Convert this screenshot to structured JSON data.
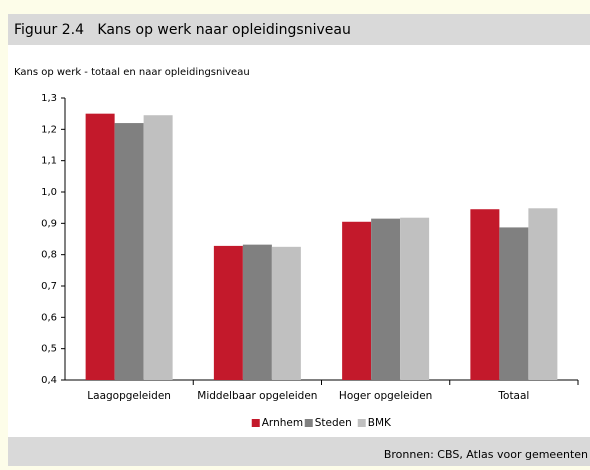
{
  "header": {
    "title": "Figuur 2.4   Kans op werk naar opleidingsniveau"
  },
  "chart_data": {
    "type": "bar",
    "subtitle": "Kans op werk - totaal en naar opleidingsniveau",
    "categories": [
      "Laagopgeleiden",
      "Middelbaar opgeleiden",
      "Hoger opgeleiden",
      "Totaal"
    ],
    "series": [
      {
        "name": "Arnhem",
        "color": "#c3192b",
        "values": [
          1.25,
          0.828,
          0.905,
          0.945
        ]
      },
      {
        "name": "Steden",
        "color": "#808080",
        "values": [
          1.22,
          0.832,
          0.915,
          0.887
        ]
      },
      {
        "name": "BMK",
        "color": "#c0c0c0",
        "values": [
          1.245,
          0.825,
          0.918,
          0.948
        ]
      }
    ],
    "ylim": [
      0.4,
      1.3
    ],
    "yticks": [
      {
        "value": 0.4,
        "label": "0,4"
      },
      {
        "value": 0.5,
        "label": "0,5"
      },
      {
        "value": 0.6,
        "label": "0,6"
      },
      {
        "value": 0.7,
        "label": "0,7"
      },
      {
        "value": 0.8,
        "label": "0,8"
      },
      {
        "value": 0.9,
        "label": "0,9"
      },
      {
        "value": 1.0,
        "label": "1,0"
      },
      {
        "value": 1.1,
        "label": "1,1"
      },
      {
        "value": 1.2,
        "label": "1,2"
      },
      {
        "value": 1.3,
        "label": "1,3"
      }
    ],
    "legend": "bottom"
  },
  "footer": {
    "source": "Bronnen: CBS, Atlas voor gemeenten"
  }
}
